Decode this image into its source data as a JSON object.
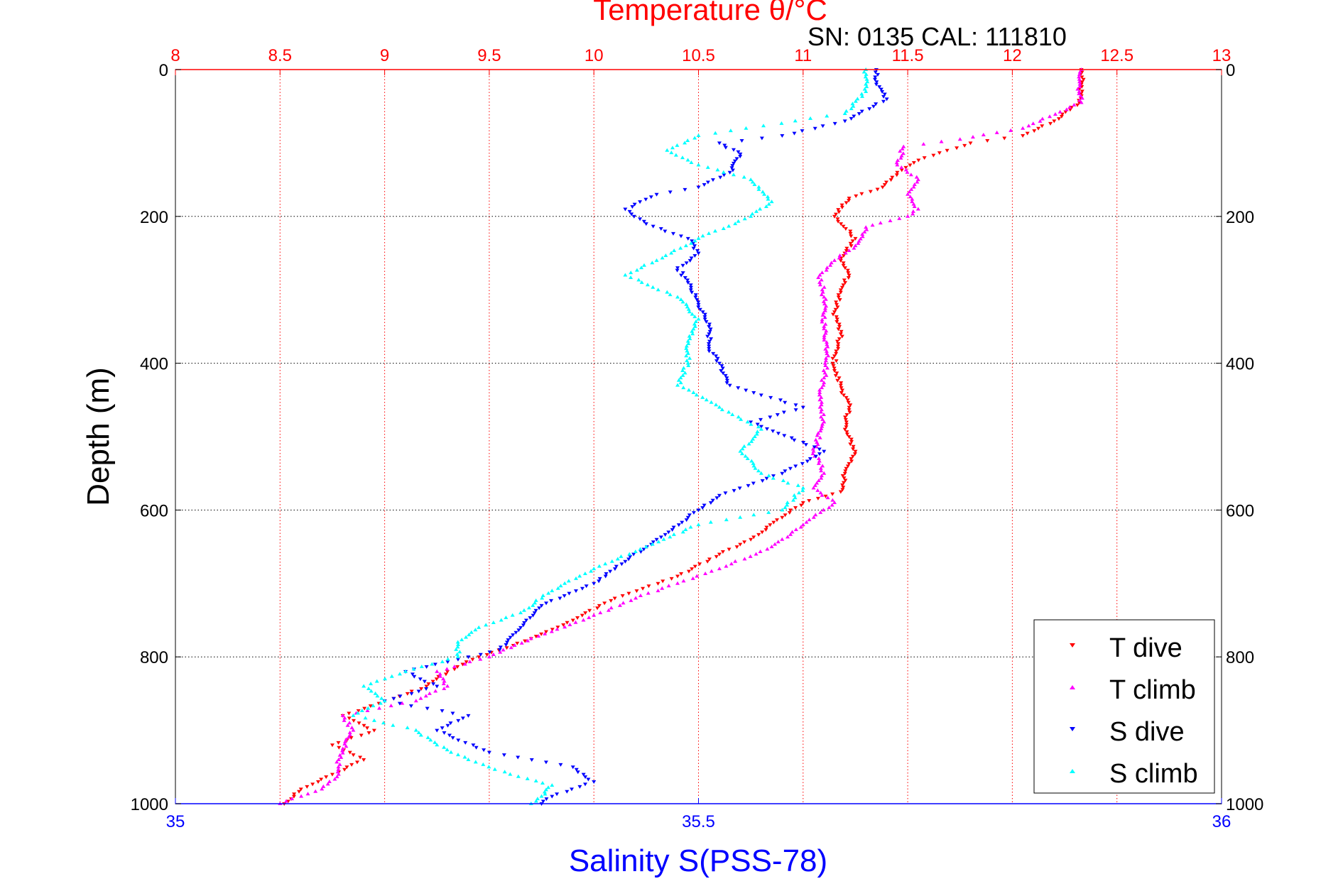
{
  "header": {
    "top_axis_title": "Temperature θ/°C",
    "serial_label": "SN: 0135  CAL: 111810"
  },
  "colors": {
    "temperature_axis": "#ff0000",
    "salinity_axis": "#0000ff",
    "t_dive": "#ff0000",
    "t_climb": "#ff00ff",
    "s_dive": "#0000ff",
    "s_climb": "#00ffff",
    "grid": "#000000"
  },
  "chart_data": {
    "type": "scatter",
    "title": "",
    "y_axis": {
      "label": "Depth (m)",
      "range": [
        0,
        1000
      ],
      "inverted": true,
      "ticks": [
        0,
        200,
        400,
        600,
        800,
        1000
      ],
      "grid": true
    },
    "temperature_axis": {
      "label": "Temperature θ/°C",
      "position": "top",
      "range": [
        8,
        13
      ],
      "ticks": [
        8,
        8.5,
        9,
        9.5,
        10,
        10.5,
        11,
        11.5,
        12,
        12.5,
        13
      ],
      "grid": true
    },
    "salinity_axis": {
      "label": "Salinity S(PSS-78)",
      "position": "bottom",
      "range": [
        35,
        36
      ],
      "ticks": [
        35,
        35.5,
        36
      ]
    },
    "legend": {
      "position": "bottom-right",
      "entries": [
        "T dive",
        "T climb",
        "S dive",
        "S climb"
      ]
    },
    "series": [
      {
        "name": "T dive",
        "axis": "temperature",
        "marker": "triangle-down",
        "color": "#ff0000",
        "points": [
          [
            12.33,
            0
          ],
          [
            12.33,
            20
          ],
          [
            12.32,
            45
          ],
          [
            12.2,
            70
          ],
          [
            12.05,
            90
          ],
          [
            11.8,
            100
          ],
          [
            11.58,
            120
          ],
          [
            11.45,
            140
          ],
          [
            11.38,
            160
          ],
          [
            11.22,
            175
          ],
          [
            11.15,
            200
          ],
          [
            11.25,
            230
          ],
          [
            11.18,
            260
          ],
          [
            11.22,
            280
          ],
          [
            11.18,
            300
          ],
          [
            11.15,
            330
          ],
          [
            11.18,
            360
          ],
          [
            11.15,
            390
          ],
          [
            11.15,
            410
          ],
          [
            11.18,
            430
          ],
          [
            11.22,
            460
          ],
          [
            11.2,
            490
          ],
          [
            11.25,
            520
          ],
          [
            11.2,
            550
          ],
          [
            11.18,
            575
          ],
          [
            11.0,
            590
          ],
          [
            10.9,
            610
          ],
          [
            10.75,
            640
          ],
          [
            10.6,
            660
          ],
          [
            10.4,
            690
          ],
          [
            10.1,
            720
          ],
          [
            9.9,
            750
          ],
          [
            9.7,
            775
          ],
          [
            9.45,
            800
          ],
          [
            9.3,
            820
          ],
          [
            9.2,
            840
          ],
          [
            9.0,
            860
          ],
          [
            8.8,
            880
          ],
          [
            8.95,
            900
          ],
          [
            8.75,
            920
          ],
          [
            8.9,
            940
          ],
          [
            8.75,
            960
          ],
          [
            8.6,
            980
          ],
          [
            8.52,
            1000
          ]
        ]
      },
      {
        "name": "T climb",
        "axis": "temperature",
        "marker": "triangle-up",
        "color": "#ff00ff",
        "points": [
          [
            12.33,
            0
          ],
          [
            12.32,
            30
          ],
          [
            12.33,
            45
          ],
          [
            12.05,
            80
          ],
          [
            11.75,
            95
          ],
          [
            11.48,
            105
          ],
          [
            11.45,
            130
          ],
          [
            11.55,
            150
          ],
          [
            11.5,
            170
          ],
          [
            11.55,
            190
          ],
          [
            11.5,
            200
          ],
          [
            11.3,
            215
          ],
          [
            11.25,
            240
          ],
          [
            11.15,
            260
          ],
          [
            11.08,
            280
          ],
          [
            11.1,
            310
          ],
          [
            11.1,
            350
          ],
          [
            11.12,
            390
          ],
          [
            11.1,
            420
          ],
          [
            11.08,
            450
          ],
          [
            11.1,
            480
          ],
          [
            11.05,
            520
          ],
          [
            11.1,
            550
          ],
          [
            11.05,
            570
          ],
          [
            11.15,
            590
          ],
          [
            11.0,
            620
          ],
          [
            10.85,
            650
          ],
          [
            10.6,
            680
          ],
          [
            10.4,
            700
          ],
          [
            10.2,
            720
          ],
          [
            9.95,
            750
          ],
          [
            9.7,
            775
          ],
          [
            9.5,
            800
          ],
          [
            9.25,
            820
          ],
          [
            9.3,
            840
          ],
          [
            9.15,
            860
          ],
          [
            8.8,
            880
          ],
          [
            8.85,
            900
          ],
          [
            8.8,
            925
          ],
          [
            8.78,
            940
          ],
          [
            8.78,
            960
          ],
          [
            8.7,
            980
          ],
          [
            8.5,
            1000
          ]
        ]
      },
      {
        "name": "S dive",
        "axis": "salinity",
        "marker": "triangle-down",
        "color": "#0000ff",
        "points": [
          [
            35.67,
            0
          ],
          [
            35.67,
            20
          ],
          [
            35.68,
            40
          ],
          [
            35.64,
            70
          ],
          [
            35.58,
            90
          ],
          [
            35.52,
            100
          ],
          [
            35.54,
            115
          ],
          [
            35.53,
            140
          ],
          [
            35.5,
            160
          ],
          [
            35.46,
            170
          ],
          [
            35.43,
            190
          ],
          [
            35.45,
            210
          ],
          [
            35.49,
            230
          ],
          [
            35.5,
            250
          ],
          [
            35.48,
            270
          ],
          [
            35.49,
            290
          ],
          [
            35.5,
            320
          ],
          [
            35.51,
            350
          ],
          [
            35.51,
            380
          ],
          [
            35.52,
            400
          ],
          [
            35.53,
            430
          ],
          [
            35.6,
            460
          ],
          [
            35.55,
            480
          ],
          [
            35.62,
            520
          ],
          [
            35.58,
            550
          ],
          [
            35.52,
            580
          ],
          [
            35.49,
            610
          ],
          [
            35.46,
            640
          ],
          [
            35.43,
            670
          ],
          [
            35.4,
            700
          ],
          [
            35.35,
            730
          ],
          [
            35.33,
            760
          ],
          [
            35.31,
            790
          ],
          [
            35.28,
            800
          ],
          [
            35.22,
            820
          ],
          [
            35.25,
            840
          ],
          [
            35.2,
            860
          ],
          [
            35.28,
            880
          ],
          [
            35.25,
            900
          ],
          [
            35.3,
            930
          ],
          [
            35.38,
            950
          ],
          [
            35.4,
            970
          ],
          [
            35.36,
            990
          ],
          [
            35.35,
            1000
          ]
        ]
      },
      {
        "name": "S climb",
        "axis": "salinity",
        "marker": "triangle-up",
        "color": "#00ffff",
        "points": [
          [
            35.66,
            0
          ],
          [
            35.66,
            30
          ],
          [
            35.64,
            60
          ],
          [
            35.5,
            90
          ],
          [
            35.47,
            110
          ],
          [
            35.5,
            130
          ],
          [
            35.55,
            150
          ],
          [
            35.57,
            180
          ],
          [
            35.55,
            200
          ],
          [
            35.5,
            230
          ],
          [
            35.46,
            260
          ],
          [
            35.43,
            280
          ],
          [
            35.48,
            310
          ],
          [
            35.5,
            340
          ],
          [
            35.49,
            370
          ],
          [
            35.49,
            400
          ],
          [
            35.48,
            430
          ],
          [
            35.52,
            460
          ],
          [
            35.56,
            490
          ],
          [
            35.54,
            520
          ],
          [
            35.56,
            550
          ],
          [
            35.6,
            570
          ],
          [
            35.58,
            600
          ],
          [
            35.5,
            620
          ],
          [
            35.45,
            650
          ],
          [
            35.4,
            680
          ],
          [
            35.36,
            710
          ],
          [
            35.33,
            740
          ],
          [
            35.29,
            760
          ],
          [
            35.27,
            780
          ],
          [
            35.27,
            800
          ],
          [
            35.22,
            820
          ],
          [
            35.18,
            840
          ],
          [
            35.2,
            860
          ],
          [
            35.17,
            880
          ],
          [
            35.23,
            900
          ],
          [
            35.25,
            920
          ],
          [
            35.28,
            940
          ],
          [
            35.32,
            960
          ],
          [
            35.36,
            975
          ],
          [
            35.35,
            990
          ],
          [
            35.34,
            1000
          ]
        ]
      }
    ]
  }
}
